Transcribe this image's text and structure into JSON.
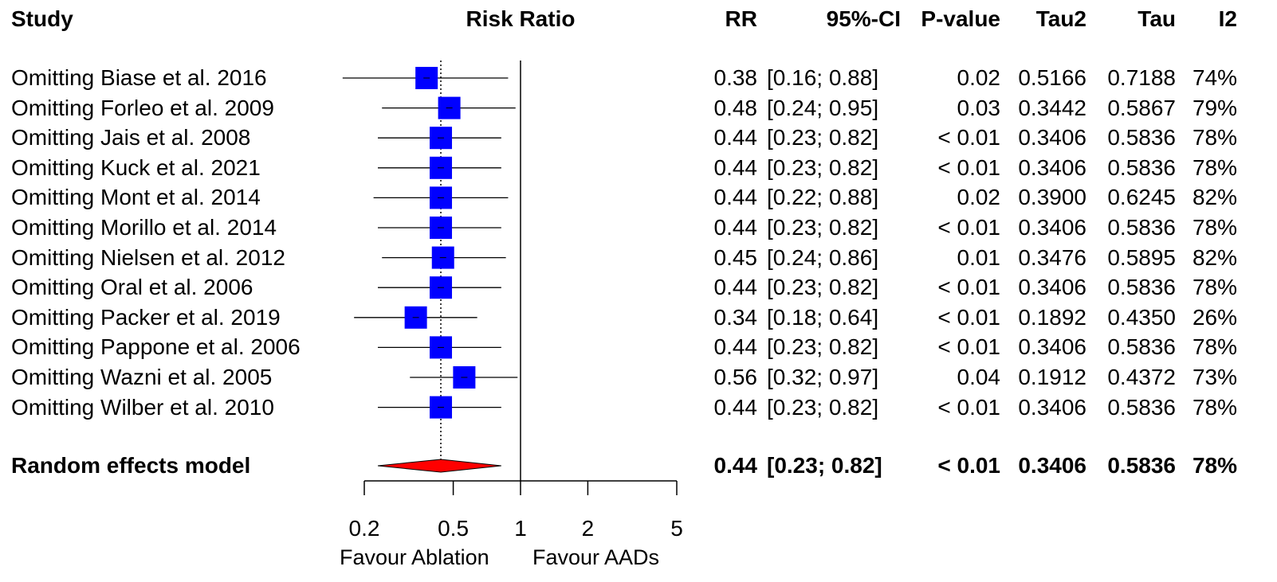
{
  "headers": {
    "study": "Study",
    "plot": "Risk Ratio",
    "rr": "RR",
    "ci": "95%-CI",
    "p": "P-value",
    "tau2": "Tau2",
    "tau": "Tau",
    "i2": "I2"
  },
  "x_labels": {
    "left": "Favour Ablation",
    "right": "Favour AADs"
  },
  "chart_data": {
    "type": "forest",
    "scale": "log",
    "xlim": [
      0.15,
      5.8
    ],
    "ticks": [
      0.2,
      0.5,
      1,
      2,
      5
    ],
    "tick_labels": [
      "0.2",
      "0.5",
      "1",
      "2",
      "5"
    ],
    "null_line": 1,
    "colors": {
      "box": "#0000ff",
      "diamond": "#ff0000"
    },
    "studies": [
      {
        "label": "Omitting Biase et al. 2016",
        "rr": 0.38,
        "lo": 0.16,
        "hi": 0.88,
        "rr_text": "0.38",
        "ci_text": "[0.16; 0.88]",
        "p_text": "0.02",
        "tau2": "0.5166",
        "tau": "0.7188",
        "i2": "74%"
      },
      {
        "label": "Omitting Forleo et al. 2009",
        "rr": 0.48,
        "lo": 0.24,
        "hi": 0.95,
        "rr_text": "0.48",
        "ci_text": "[0.24; 0.95]",
        "p_text": "0.03",
        "tau2": "0.3442",
        "tau": "0.5867",
        "i2": "79%"
      },
      {
        "label": "Omitting Jais et al. 2008",
        "rr": 0.44,
        "lo": 0.23,
        "hi": 0.82,
        "rr_text": "0.44",
        "ci_text": "[0.23; 0.82]",
        "p_text": "< 0.01",
        "tau2": "0.3406",
        "tau": "0.5836",
        "i2": "78%"
      },
      {
        "label": "Omitting Kuck et al. 2021",
        "rr": 0.44,
        "lo": 0.23,
        "hi": 0.82,
        "rr_text": "0.44",
        "ci_text": "[0.23; 0.82]",
        "p_text": "< 0.01",
        "tau2": "0.3406",
        "tau": "0.5836",
        "i2": "78%"
      },
      {
        "label": "Omitting Mont et al. 2014",
        "rr": 0.44,
        "lo": 0.22,
        "hi": 0.88,
        "rr_text": "0.44",
        "ci_text": "[0.22; 0.88]",
        "p_text": "0.02",
        "tau2": "0.3900",
        "tau": "0.6245",
        "i2": "82%"
      },
      {
        "label": "Omitting Morillo et al. 2014",
        "rr": 0.44,
        "lo": 0.23,
        "hi": 0.82,
        "rr_text": "0.44",
        "ci_text": "[0.23; 0.82]",
        "p_text": "< 0.01",
        "tau2": "0.3406",
        "tau": "0.5836",
        "i2": "78%"
      },
      {
        "label": "Omitting Nielsen et al. 2012",
        "rr": 0.45,
        "lo": 0.24,
        "hi": 0.86,
        "rr_text": "0.45",
        "ci_text": "[0.24; 0.86]",
        "p_text": "0.01",
        "tau2": "0.3476",
        "tau": "0.5895",
        "i2": "82%"
      },
      {
        "label": "Omitting Oral et al. 2006",
        "rr": 0.44,
        "lo": 0.23,
        "hi": 0.82,
        "rr_text": "0.44",
        "ci_text": "[0.23; 0.82]",
        "p_text": "< 0.01",
        "tau2": "0.3406",
        "tau": "0.5836",
        "i2": "78%"
      },
      {
        "label": "Omitting Packer et al. 2019",
        "rr": 0.34,
        "lo": 0.18,
        "hi": 0.64,
        "rr_text": "0.34",
        "ci_text": "[0.18; 0.64]",
        "p_text": "< 0.01",
        "tau2": "0.1892",
        "tau": "0.4350",
        "i2": "26%"
      },
      {
        "label": "Omitting Pappone et al. 2006",
        "rr": 0.44,
        "lo": 0.23,
        "hi": 0.82,
        "rr_text": "0.44",
        "ci_text": "[0.23; 0.82]",
        "p_text": "< 0.01",
        "tau2": "0.3406",
        "tau": "0.5836",
        "i2": "78%"
      },
      {
        "label": "Omitting Wazni et al. 2005",
        "rr": 0.56,
        "lo": 0.32,
        "hi": 0.97,
        "rr_text": "0.56",
        "ci_text": "[0.32; 0.97]",
        "p_text": "0.04",
        "tau2": "0.1912",
        "tau": "0.4372",
        "i2": "73%"
      },
      {
        "label": "Omitting Wilber et al. 2010",
        "rr": 0.44,
        "lo": 0.23,
        "hi": 0.82,
        "rr_text": "0.44",
        "ci_text": "[0.23; 0.82]",
        "p_text": "< 0.01",
        "tau2": "0.3406",
        "tau": "0.5836",
        "i2": "78%"
      }
    ],
    "pooled": {
      "label": "Random effects model",
      "rr": 0.44,
      "lo": 0.23,
      "hi": 0.82,
      "rr_text": "0.44",
      "ci_text": "[0.23; 0.82]",
      "p_text": "< 0.01",
      "tau2": "0.3406",
      "tau": "0.5836",
      "i2": "78%"
    }
  }
}
